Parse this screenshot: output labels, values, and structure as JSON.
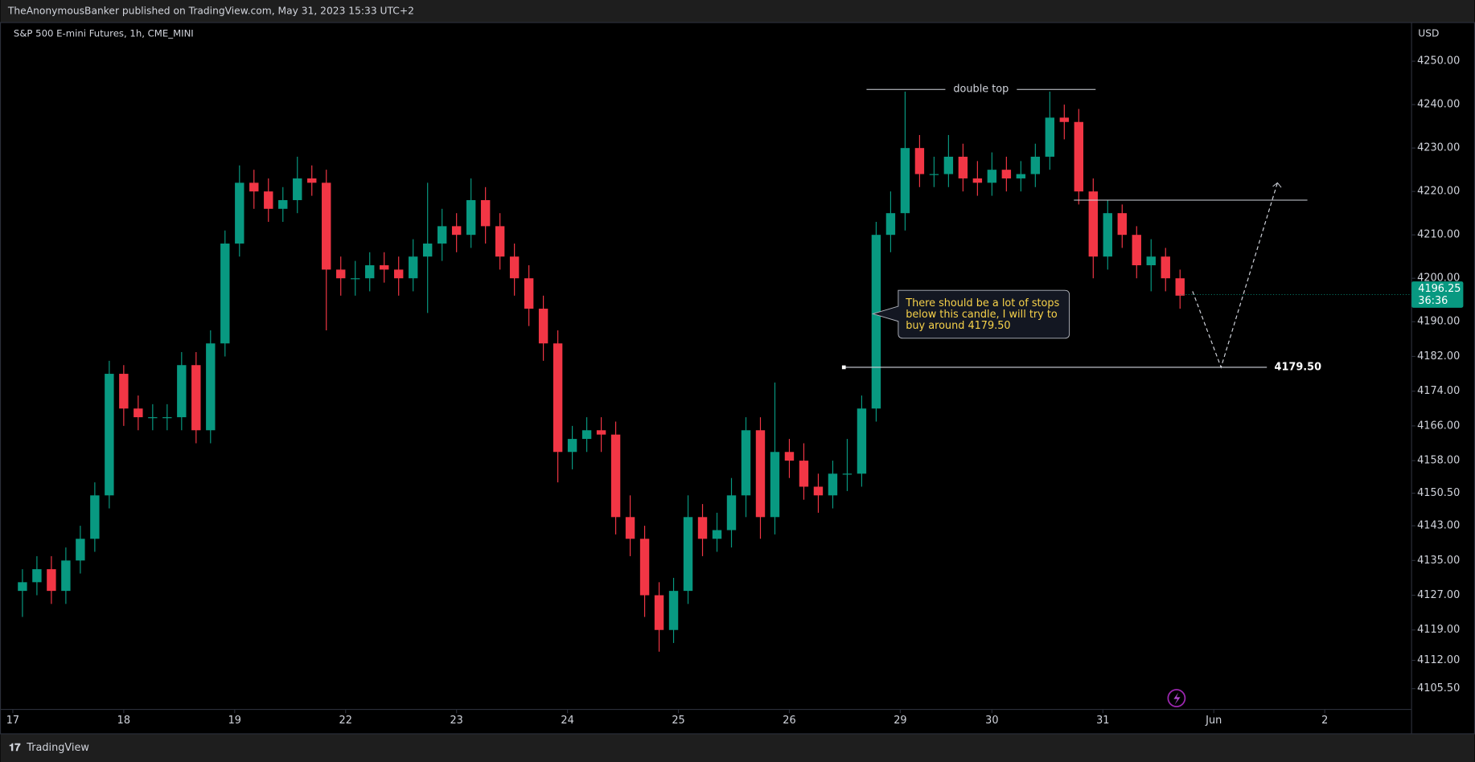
{
  "header": {
    "publisher": "TheAnonymousBanker published on TradingView.com, May 31, 2023 15:33 UTC+2",
    "footer": "TradingView"
  },
  "chart_data": {
    "type": "candlestick",
    "title": "S&P 500 E-mini Futures, 1h, CME_MINI",
    "y_axis_label": "USD",
    "up_color": "#089981",
    "down_color": "#f23645",
    "x": [
      3,
      6,
      9,
      12,
      15,
      18,
      21,
      24,
      27,
      30,
      33,
      36,
      39,
      42,
      45,
      48,
      51,
      54,
      57,
      60,
      63,
      66,
      69,
      72,
      75,
      78,
      81,
      84,
      87,
      90,
      93,
      96,
      99,
      102,
      105,
      108,
      111,
      114,
      117,
      120,
      123,
      126,
      129,
      132,
      135,
      138,
      141,
      144,
      147,
      150,
      153,
      156,
      159,
      162,
      165,
      168,
      171,
      174,
      177,
      180,
      183,
      186,
      189,
      192,
      195,
      198,
      201,
      204,
      207,
      210,
      213,
      216,
      219,
      222,
      225,
      228,
      231,
      234,
      237,
      240,
      243
    ],
    "open": [
      4128,
      4130,
      4133,
      4128,
      4135,
      4140,
      4150,
      4178,
      4170,
      4168,
      4168,
      4168,
      4180,
      4165,
      4185,
      4208,
      4222,
      4220,
      4216,
      4218,
      4223,
      4222,
      4202,
      4200,
      4200,
      4203,
      4202,
      4200,
      4205,
      4208,
      4212,
      4210,
      4218,
      4212,
      4205,
      4200,
      4193,
      4185,
      4160,
      4163,
      4165,
      4164,
      4145,
      4140,
      4127,
      4119,
      4128,
      4145,
      4140,
      4142,
      4150,
      4165,
      4145,
      4160,
      4158,
      4152,
      4150,
      4155,
      4155,
      4170,
      4210,
      4215,
      4230,
      4224,
      4224,
      4228,
      4223,
      4222,
      4225,
      4223,
      4224,
      4228,
      4237,
      4236,
      4220,
      4205,
      4215,
      4210,
      4203,
      4205,
      4200
    ],
    "high": [
      4133,
      4136,
      4136,
      4138,
      4143,
      4153,
      4181,
      4180,
      4173,
      4171,
      4171,
      4183,
      4183,
      4188,
      4211,
      4226,
      4225,
      4223,
      4221,
      4228,
      4226,
      4225,
      4205,
      4204,
      4206,
      4206,
      4205,
      4209,
      4222,
      4216,
      4215,
      4223,
      4221,
      4215,
      4208,
      4203,
      4196,
      4188,
      4166,
      4168,
      4168,
      4167,
      4150,
      4143,
      4130,
      4131,
      4150,
      4148,
      4146,
      4154,
      4168,
      4168,
      4176,
      4163,
      4162,
      4155,
      4158,
      4163,
      4173,
      4213,
      4220,
      4243,
      4233,
      4228,
      4233,
      4231,
      4227,
      4229,
      4228,
      4227,
      4231,
      4243,
      4240,
      4239,
      4223,
      4218,
      4217,
      4212,
      4209,
      4207,
      4202
    ],
    "low": [
      4122,
      4127,
      4125,
      4125,
      4132,
      4137,
      4147,
      4166,
      4165,
      4165,
      4165,
      4165,
      4162,
      4162,
      4182,
      4205,
      4216,
      4213,
      4213,
      4215,
      4219,
      4188,
      4196,
      4196,
      4197,
      4199,
      4196,
      4197,
      4192,
      4204,
      4206,
      4207,
      4208,
      4202,
      4196,
      4189,
      4181,
      4153,
      4156,
      4160,
      4160,
      4141,
      4136,
      4122,
      4114,
      4116,
      4125,
      4136,
      4137,
      4138,
      4145,
      4140,
      4141,
      4154,
      4149,
      4146,
      4147,
      4151,
      4152,
      4167,
      4206,
      4211,
      4221,
      4221,
      4221,
      4220,
      4219,
      4219,
      4220,
      4220,
      4221,
      4225,
      4232,
      4217,
      4200,
      4202,
      4207,
      4200,
      4197,
      4197,
      4193
    ],
    "close": [
      4130,
      4133,
      4128,
      4135,
      4140,
      4150,
      4178,
      4170,
      4168,
      4168,
      4168,
      4180,
      4165,
      4185,
      4208,
      4222,
      4220,
      4216,
      4218,
      4223,
      4222,
      4202,
      4200,
      4200,
      4203,
      4202,
      4200,
      4205,
      4208,
      4212,
      4210,
      4218,
      4212,
      4205,
      4200,
      4193,
      4185,
      4160,
      4163,
      4165,
      4164,
      4145,
      4140,
      4127,
      4119,
      4128,
      4145,
      4140,
      4142,
      4150,
      4165,
      4145,
      4160,
      4158,
      4152,
      4150,
      4155,
      4155,
      4170,
      4210,
      4215,
      4230,
      4224,
      4224,
      4228,
      4223,
      4222,
      4225,
      4223,
      4224,
      4228,
      4237,
      4236,
      4220,
      4205,
      4215,
      4210,
      4203,
      4205,
      4200,
      4196
    ],
    "xlim": [
      0,
      291
    ],
    "ylim": [
      4095.3,
      4258.9
    ],
    "xticks": [
      {
        "value": 1,
        "label": "17"
      },
      {
        "value": 24,
        "label": "18"
      },
      {
        "value": 47,
        "label": "19"
      },
      {
        "value": 70,
        "label": "22"
      },
      {
        "value": 93,
        "label": "23"
      },
      {
        "value": 116,
        "label": "24"
      },
      {
        "value": 139,
        "label": "25"
      },
      {
        "value": 162,
        "label": "26"
      },
      {
        "value": 185,
        "label": "29"
      },
      {
        "value": 204,
        "label": "30"
      },
      {
        "value": 227,
        "label": "31"
      },
      {
        "value": 250,
        "label": "Jun"
      },
      {
        "value": 273,
        "label": "2"
      }
    ],
    "yticks": [
      {
        "value": 4250,
        "label": "4250.00"
      },
      {
        "value": 4240,
        "label": "4240.00"
      },
      {
        "value": 4230,
        "label": "4230.00"
      },
      {
        "value": 4220,
        "label": "4220.00"
      },
      {
        "value": 4210,
        "label": "4210.00"
      },
      {
        "value": 4200,
        "label": "4200.00"
      },
      {
        "value": 4190,
        "label": "4190.00"
      },
      {
        "value": 4182,
        "label": "4182.00"
      },
      {
        "value": 4174,
        "label": "4174.00"
      },
      {
        "value": 4166,
        "label": "4166.00"
      },
      {
        "value": 4158,
        "label": "4158.00"
      },
      {
        "value": 4150.5,
        "label": "4150.50"
      },
      {
        "value": 4143,
        "label": "4143.00"
      },
      {
        "value": 4135,
        "label": "4135.00"
      },
      {
        "value": 4127,
        "label": "4127.00"
      },
      {
        "value": 4119,
        "label": "4119.00"
      },
      {
        "value": 4112,
        "label": "4112.00"
      },
      {
        "value": 4105.5,
        "label": "4105.50"
      }
    ],
    "grid": false,
    "last_price": 4196.25,
    "countdown": "36:36",
    "annotations": {
      "double_top": {
        "text": "double top",
        "price": 4243.5,
        "x": [
          178,
          225.5
        ]
      },
      "level": {
        "price": {
          "value": 4179.5,
          "label": "4179.50"
        },
        "x": [
          173.3,
          261
        ]
      },
      "resistance": {
        "price": 4218,
        "x": [
          221,
          269.4
        ]
      },
      "projection": {
        "x": [
          245.6,
          251.5,
          263.2
        ],
        "y": [
          4197,
          4179.5,
          4222
        ]
      },
      "callout": {
        "lines": [
          "There should be a lot of stops",
          "below this candle, I will try to",
          "buy around 4179.50"
        ]
      }
    }
  }
}
